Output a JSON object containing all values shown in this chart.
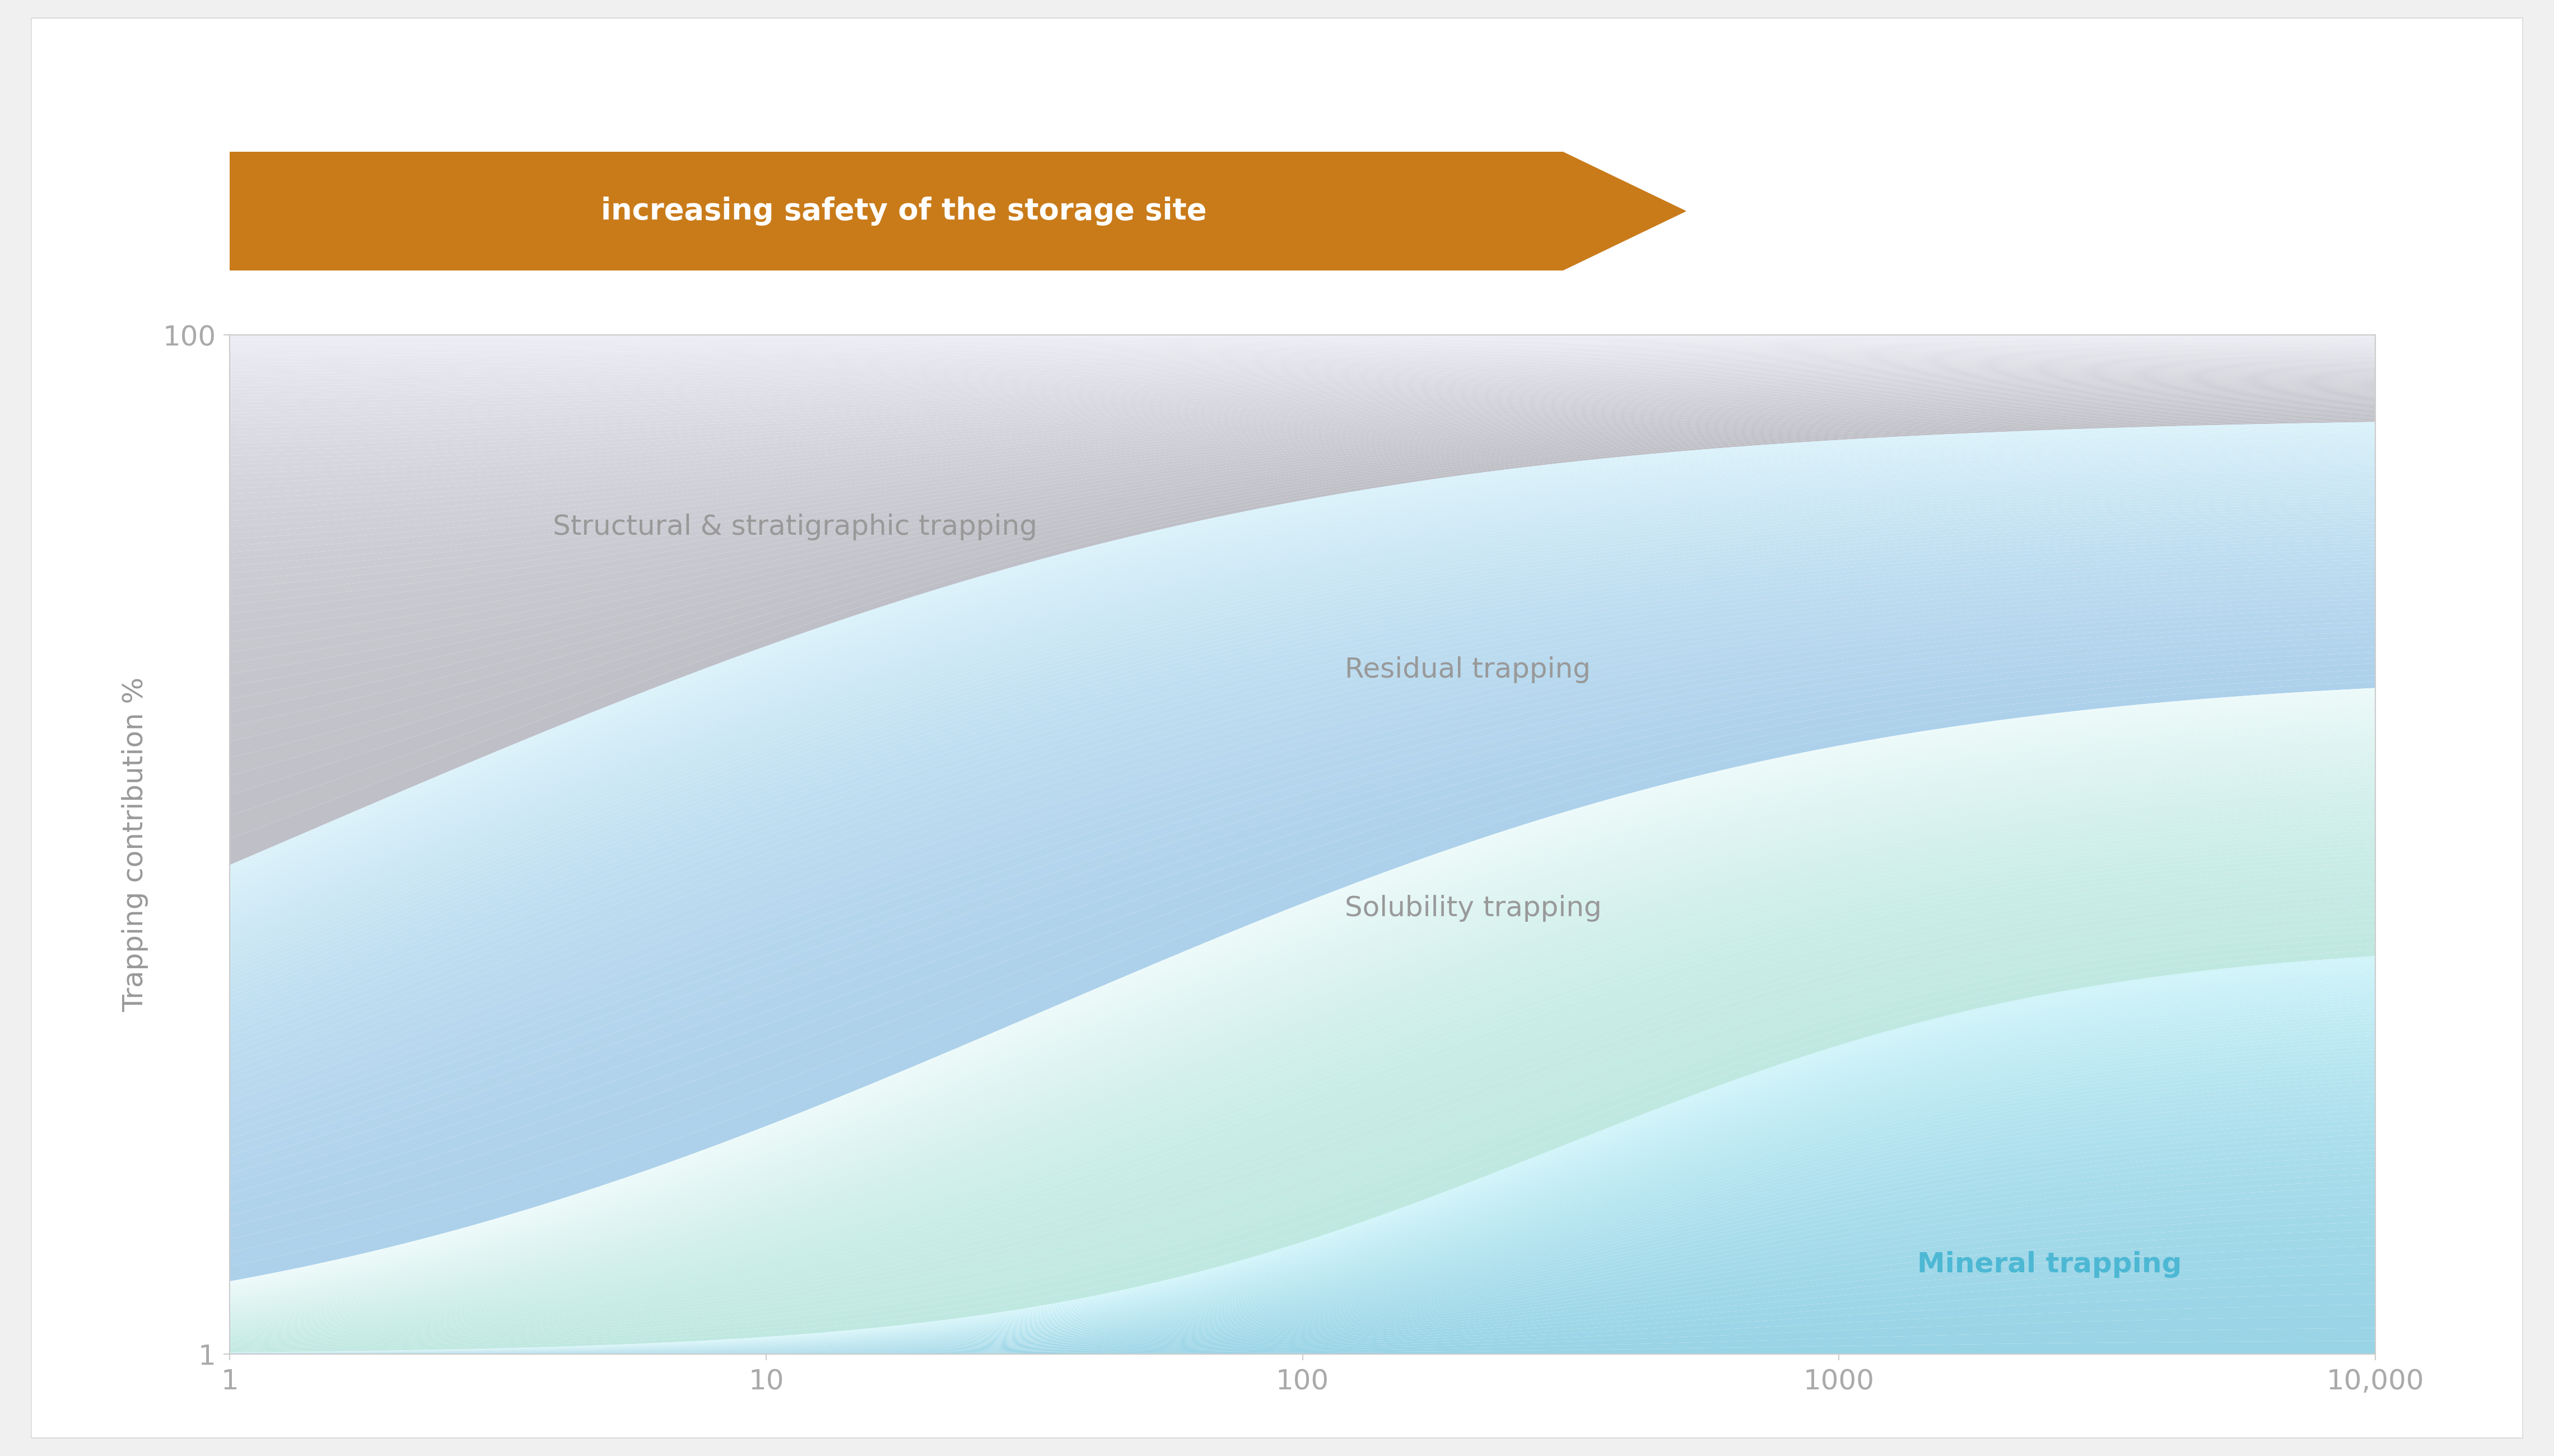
{
  "arrow_text": "increasing safety of the storage site",
  "arrow_color": "#C97B1A",
  "arrow_text_color": "#ffffff",
  "ylabel": "Trapping contribution %",
  "ylabel_color": "#999999",
  "xlabel_tick_labels": [
    "1",
    "10",
    "100",
    "1000",
    "10,000"
  ],
  "ytick_labels": [
    "1",
    "100"
  ],
  "background_color": "#f0f0f0",
  "card_color": "#ffffff",
  "tick_color": "#aaaaaa",
  "label_colors": {
    "structural": "#999999",
    "residual": "#999999",
    "solubility": "#999999",
    "mineral": "#4db8d4"
  },
  "label_texts": {
    "structural": "Structural & stratigraphic trapping",
    "residual": "Residual trapping",
    "solubility": "Solubility trapping",
    "mineral": "Mineral trapping"
  }
}
